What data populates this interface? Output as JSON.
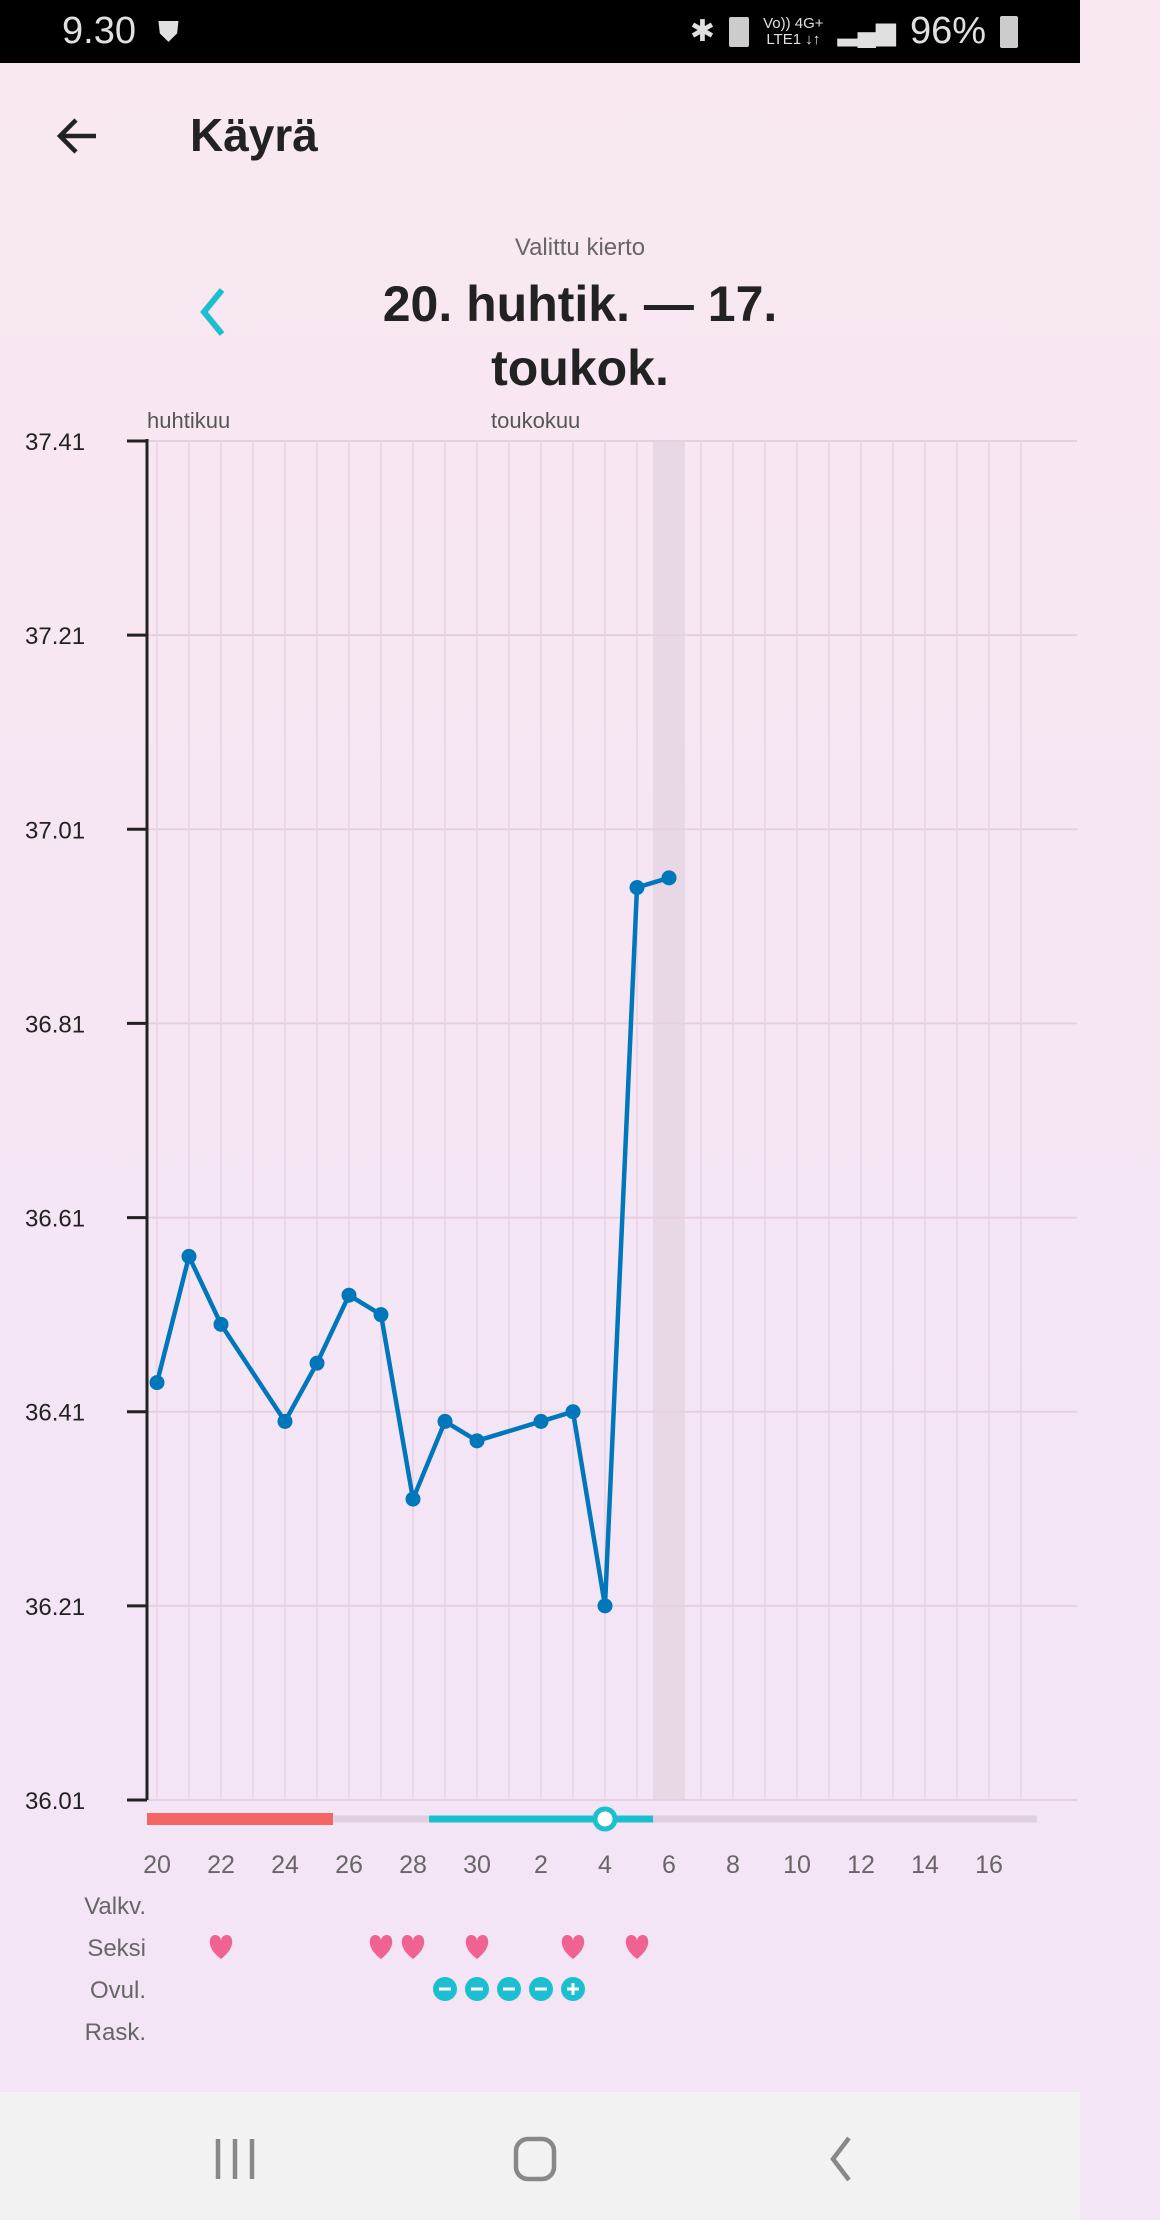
{
  "status_bar": {
    "time": "9.30",
    "network_top": "Vo)) 4G+",
    "network_bottom": "LTE1 ↓↑",
    "battery": "96%"
  },
  "header": {
    "title": "Käyrä",
    "back_icon": "arrow-left-icon"
  },
  "cycle": {
    "label": "Valittu kierto",
    "range": "20. huhtik. — 17. toukok.",
    "prev_icon": "chevron-left-icon"
  },
  "colors": {
    "line": "#0077bb",
    "accent": "#1bbfcf",
    "period": "#f46565",
    "heart": "#f06292",
    "highlight": "#e8d8e6"
  },
  "chart_data": {
    "type": "line",
    "month_labels": [
      {
        "label": "huhtikuu",
        "day": "20.4."
      },
      {
        "label": "toukokuu",
        "day": "1.5."
      }
    ],
    "days": [
      "20.4.",
      "21.4.",
      "22.4.",
      "23.4.",
      "24.4.",
      "25.4.",
      "26.4.",
      "27.4.",
      "28.4.",
      "29.4.",
      "30.4.",
      "1.5.",
      "2.5.",
      "3.5.",
      "4.5.",
      "5.5.",
      "6.5.",
      "7.5.",
      "8.5.",
      "9.5.",
      "10.5.",
      "11.5.",
      "12.5.",
      "13.5.",
      "14.5.",
      "15.5.",
      "16.5.",
      "17.5."
    ],
    "x_tick_labels": [
      "20",
      "22",
      "24",
      "26",
      "28",
      "30",
      "2",
      "4",
      "6",
      "8",
      "10",
      "12",
      "14",
      "16"
    ],
    "y_ticks": [
      "37.41",
      "37.21",
      "37.01",
      "36.81",
      "36.61",
      "36.41",
      "36.21",
      "36.01"
    ],
    "ylim": [
      36.01,
      37.41
    ],
    "grid": true,
    "series": [
      {
        "points": [
          {
            "day": "20.4.",
            "value": 36.44
          },
          {
            "day": "21.4.",
            "value": 36.57
          },
          {
            "day": "22.4.",
            "value": 36.5
          },
          {
            "day": "24.4.",
            "value": 36.4
          },
          {
            "day": "25.4.",
            "value": 36.46
          },
          {
            "day": "26.4.",
            "value": 36.53
          },
          {
            "day": "27.4.",
            "value": 36.51
          },
          {
            "day": "28.4.",
            "value": 36.32
          },
          {
            "day": "29.4.",
            "value": 36.4
          },
          {
            "day": "30.4.",
            "value": 36.38
          },
          {
            "day": "2.5.",
            "value": 36.4
          },
          {
            "day": "3.5.",
            "value": 36.41
          },
          {
            "day": "4.5.",
            "value": 36.21
          },
          {
            "day": "5.5.",
            "value": 36.95
          },
          {
            "day": "6.5.",
            "value": 36.96
          }
        ]
      }
    ],
    "highlighted_day": "6.5.",
    "period": {
      "start": "20.4.",
      "end": "25.4."
    },
    "fertile_window": {
      "start": "29.4.",
      "end": "5.5."
    },
    "selected_day": "4.5.",
    "rows": [
      {
        "label": "Valkv.",
        "marks": []
      },
      {
        "label": "Seksi",
        "marks": [
          {
            "day": "22.4.",
            "icon": "heart-icon"
          },
          {
            "day": "27.4.",
            "icon": "heart-icon"
          },
          {
            "day": "28.4.",
            "icon": "heart-icon"
          },
          {
            "day": "30.4.",
            "icon": "heart-icon"
          },
          {
            "day": "3.5.",
            "icon": "heart-icon"
          },
          {
            "day": "5.5.",
            "icon": "heart-icon"
          }
        ]
      },
      {
        "label": "Ovul.",
        "marks": [
          {
            "day": "29.4.",
            "icon": "minus-circle-icon"
          },
          {
            "day": "30.4.",
            "icon": "minus-circle-icon"
          },
          {
            "day": "1.5.",
            "icon": "minus-circle-icon"
          },
          {
            "day": "2.5.",
            "icon": "minus-circle-icon"
          },
          {
            "day": "3.5.",
            "icon": "plus-circle-icon"
          }
        ]
      },
      {
        "label": "Rask.",
        "marks": []
      }
    ]
  }
}
